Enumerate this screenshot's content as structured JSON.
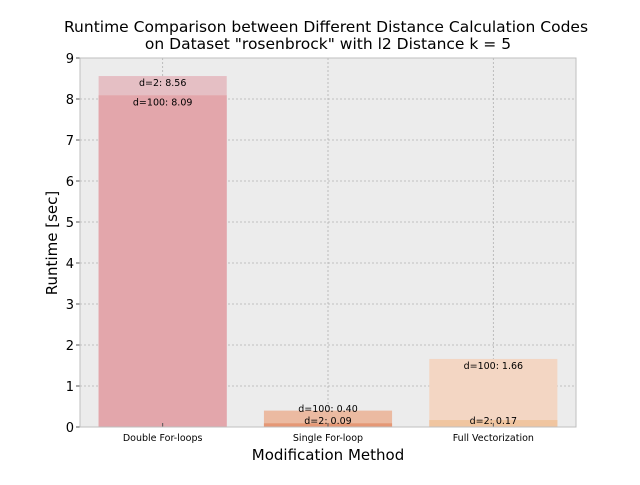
{
  "chart_data": {
    "type": "bar",
    "title_line1": "Runtime Comparison between Different Distance Calculation Codes",
    "title_line2": "on Dataset \"rosenbrock\" with l2 Distance k = 5",
    "xlabel": "Modification Method",
    "ylabel": "Runtime [sec]",
    "ylim": [
      0,
      9
    ],
    "yticks": [
      "0",
      "1",
      "2",
      "3",
      "4",
      "5",
      "6",
      "7",
      "8",
      "9"
    ],
    "grid": true,
    "categories": [
      "Double For-loops",
      "Single For-loop",
      "Full Vectorization"
    ],
    "series": [
      {
        "name": "d=2",
        "values": [
          8.56,
          0.09,
          0.17
        ],
        "labels": [
          "d=2: 8.56",
          "d=2: 0.09",
          "d=2: 0.17"
        ],
        "colors": [
          "#e5bfc4",
          "#e59775",
          "#f0c5a0"
        ]
      },
      {
        "name": "d=100",
        "values": [
          8.09,
          0.4,
          1.66
        ],
        "labels": [
          "d=100: 8.09",
          "d=100: 0.40",
          "d=100: 1.66"
        ],
        "colors": [
          "#e3a6ab",
          "#ebbaa1",
          "#f3d6c3"
        ]
      }
    ]
  }
}
